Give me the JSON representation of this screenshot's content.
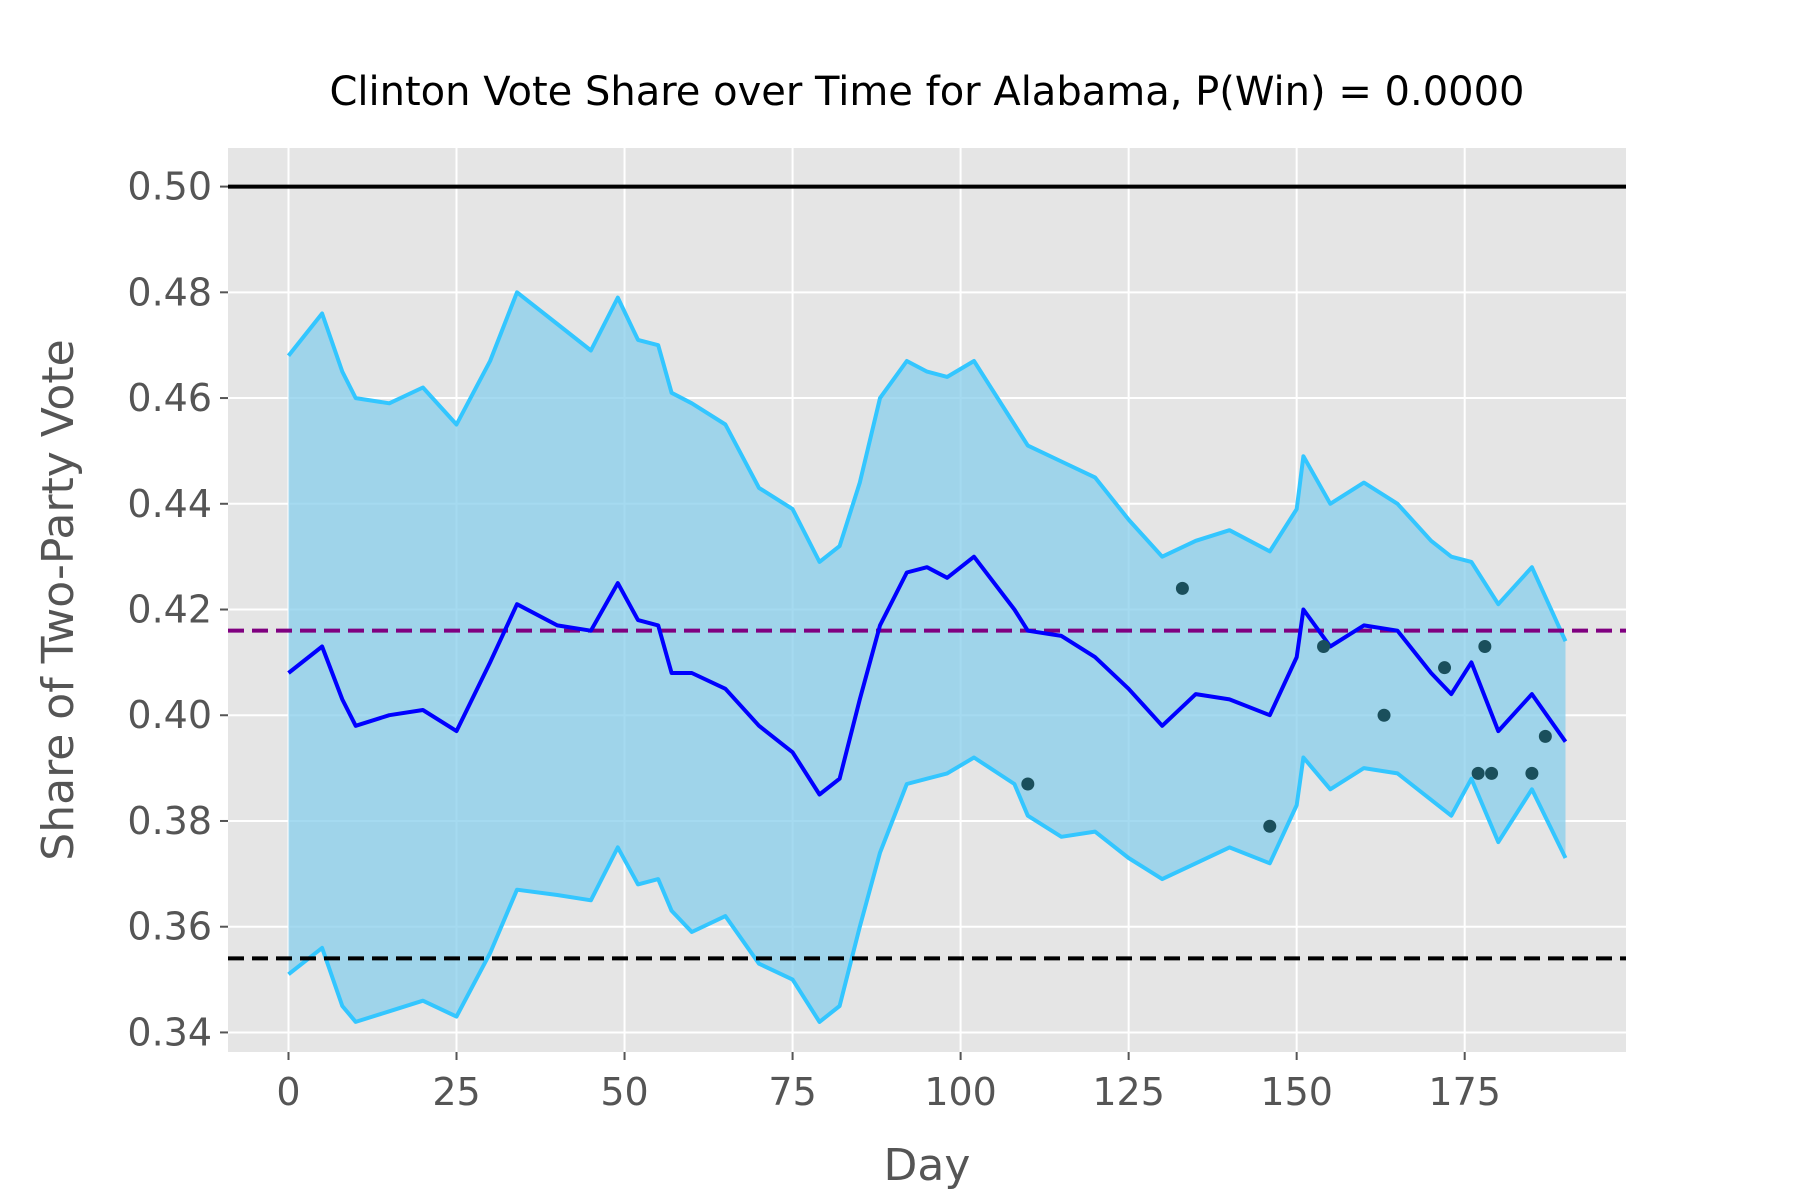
{
  "chart_data": {
    "type": "line",
    "title": "Clinton Vote Share over Time for Alabama, P(Win) = 0.0000",
    "xlabel": "Day",
    "ylabel": "Share of Two-Party Vote",
    "xlim": [
      -9,
      199
    ],
    "ylim": [
      0.3363,
      0.5073
    ],
    "xticks": [
      0,
      25,
      50,
      75,
      100,
      125,
      150,
      175
    ],
    "yticks": [
      0.34,
      0.36,
      0.38,
      0.4,
      0.42,
      0.44,
      0.46,
      0.48,
      0.5
    ],
    "xtick_labels": [
      "0",
      "25",
      "50",
      "75",
      "100",
      "125",
      "150",
      "175"
    ],
    "ytick_labels": [
      "0.34",
      "0.36",
      "0.38",
      "0.40",
      "0.42",
      "0.44",
      "0.46",
      "0.48",
      "0.50"
    ],
    "grid": true,
    "colors": {
      "background": "#e5e5e5",
      "grid": "#ffffff",
      "band_fill": "#87ceeb",
      "band_edge": "#33c6ff",
      "mean": "#0000ff",
      "reference": "#000000",
      "average": "#800080",
      "polls": "#1a4f5c"
    },
    "reference_lines": [
      {
        "y": 0.5,
        "style": "solid",
        "color": "#000000"
      },
      {
        "y": 0.354,
        "style": "dashed",
        "color": "#000000"
      },
      {
        "y": 0.416,
        "style": "dashed",
        "color": "#800080"
      }
    ],
    "series": [
      {
        "role": "mean",
        "x": [
          0,
          5,
          8,
          10,
          15,
          20,
          25,
          30,
          34,
          40,
          45,
          49,
          52,
          55,
          57,
          60,
          65,
          70,
          75,
          79,
          82,
          85,
          88,
          92,
          95,
          98,
          102,
          108,
          110,
          115,
          120,
          125,
          130,
          135,
          140,
          146,
          150,
          151,
          155,
          160,
          165,
          170,
          173,
          176,
          180,
          185,
          190
        ],
        "y": [
          0.408,
          0.413,
          0.403,
          0.398,
          0.4,
          0.401,
          0.397,
          0.41,
          0.421,
          0.417,
          0.416,
          0.425,
          0.418,
          0.417,
          0.408,
          0.408,
          0.405,
          0.398,
          0.393,
          0.385,
          0.388,
          0.403,
          0.417,
          0.427,
          0.428,
          0.426,
          0.43,
          0.42,
          0.416,
          0.415,
          0.411,
          0.405,
          0.398,
          0.404,
          0.403,
          0.4,
          0.411,
          0.42,
          0.413,
          0.417,
          0.416,
          0.408,
          0.404,
          0.41,
          0.397,
          0.404,
          0.395
        ]
      },
      {
        "role": "upper",
        "x": [
          0,
          5,
          8,
          10,
          15,
          20,
          25,
          30,
          34,
          40,
          45,
          49,
          52,
          55,
          57,
          60,
          65,
          70,
          75,
          79,
          82,
          85,
          88,
          92,
          95,
          98,
          102,
          108,
          110,
          115,
          120,
          125,
          130,
          135,
          140,
          146,
          150,
          151,
          155,
          160,
          165,
          170,
          173,
          176,
          180,
          185,
          190
        ],
        "y": [
          0.468,
          0.476,
          0.465,
          0.46,
          0.459,
          0.462,
          0.455,
          0.467,
          0.48,
          0.474,
          0.469,
          0.479,
          0.471,
          0.47,
          0.461,
          0.459,
          0.455,
          0.443,
          0.439,
          0.429,
          0.432,
          0.444,
          0.46,
          0.467,
          0.465,
          0.464,
          0.467,
          0.455,
          0.451,
          0.448,
          0.445,
          0.437,
          0.43,
          0.433,
          0.435,
          0.431,
          0.439,
          0.449,
          0.44,
          0.444,
          0.44,
          0.433,
          0.43,
          0.429,
          0.421,
          0.428,
          0.414
        ]
      },
      {
        "role": "lower",
        "x": [
          0,
          5,
          8,
          10,
          15,
          20,
          25,
          30,
          34,
          40,
          45,
          49,
          52,
          55,
          57,
          60,
          65,
          70,
          75,
          79,
          82,
          85,
          88,
          92,
          95,
          98,
          102,
          108,
          110,
          115,
          120,
          125,
          130,
          135,
          140,
          146,
          150,
          151,
          155,
          160,
          165,
          170,
          173,
          176,
          180,
          185,
          190
        ],
        "y": [
          0.351,
          0.356,
          0.345,
          0.342,
          0.344,
          0.346,
          0.343,
          0.355,
          0.367,
          0.366,
          0.365,
          0.375,
          0.368,
          0.369,
          0.363,
          0.359,
          0.362,
          0.353,
          0.35,
          0.342,
          0.345,
          0.36,
          0.374,
          0.387,
          0.388,
          0.389,
          0.392,
          0.387,
          0.381,
          0.377,
          0.378,
          0.373,
          0.369,
          0.372,
          0.375,
          0.372,
          0.383,
          0.392,
          0.386,
          0.39,
          0.389,
          0.384,
          0.381,
          0.388,
          0.376,
          0.386,
          0.373
        ]
      }
    ],
    "polls": {
      "x": [
        110,
        133,
        146,
        154,
        163,
        172,
        177,
        178,
        179,
        185,
        187
      ],
      "y": [
        0.387,
        0.424,
        0.379,
        0.413,
        0.4,
        0.409,
        0.389,
        0.413,
        0.389,
        0.389,
        0.396
      ]
    }
  }
}
